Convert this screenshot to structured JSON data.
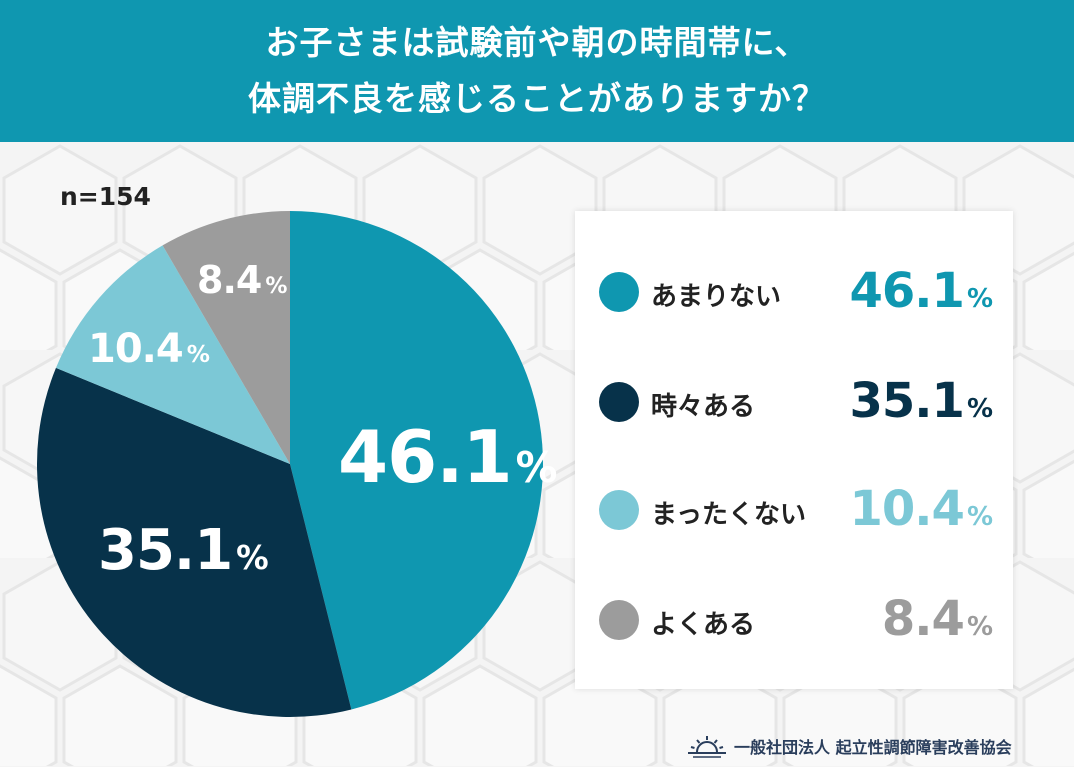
{
  "header": {
    "title_line1": "お子さまは試験前や朝の時間帯に、",
    "title_line2": "体調不良を感じることがありますか？"
  },
  "sample_size": "n=154",
  "chart_data": {
    "type": "pie",
    "title": "お子さまは試験前や朝の時間帯に、体調不良を感じることがありますか？",
    "sample": "n=154",
    "unit": "%",
    "categories": [
      "あまりない",
      "時々ある",
      "まったくない",
      "よくある"
    ],
    "values": [
      46.1,
      35.1,
      10.4,
      8.4
    ],
    "colors": [
      "#0f97b0",
      "#07324a",
      "#7cc8d6",
      "#9c9c9c"
    ],
    "value_colors": [
      "#0f97b0",
      "#07324a",
      "#7cc8d6",
      "#9c9c9c"
    ],
    "value_labels": [
      "46.1",
      "35.1",
      "10.4",
      "8.4"
    ],
    "legend": "right"
  },
  "footer": {
    "org": "一般社団法人 起立性調節障害改善協会",
    "logo_icon": "sunrise-logo-icon"
  }
}
